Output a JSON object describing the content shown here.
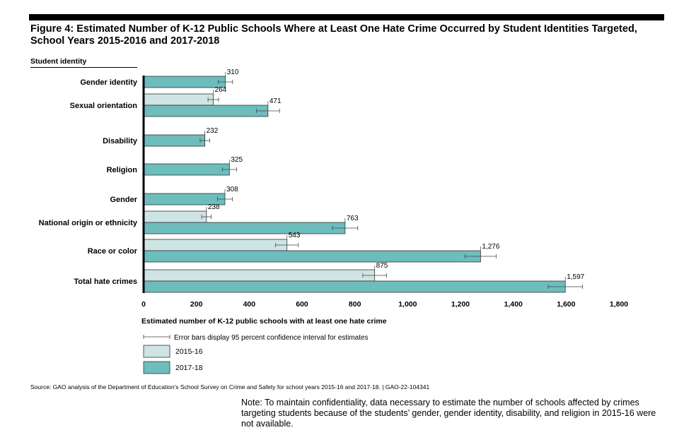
{
  "figure": {
    "title": "Figure 4: Estimated Number of K-12 Public Schools Where at Least One Hate Crime Occurred by Student Identities Targeted, School Years 2015-2016 and 2017-2018",
    "category_header": "Student identity",
    "source": "Source: GAO analysis of the Department of Education's School Survey on Crime and Safety for school years 2015-16 and 2017-18.  |  GAO-22-104341",
    "note": "Note: To maintain confidentiality, data necessary to estimate the number of schools affected by crimes targeting students because of the students’ gender, gender identity, disability, and religion in 2015-16 were not available."
  },
  "legend": {
    "error_bar_text": "Error bars display 95 percent confidence interval for estimates",
    "items": [
      {
        "label": "2015-16",
        "color": "#cfe4e4"
      },
      {
        "label": "2017-18",
        "color": "#6dbdbd"
      }
    ]
  },
  "chart_data": {
    "type": "bar",
    "orientation": "horizontal",
    "title": "Figure 4: Estimated Number of K-12 Public Schools Where at Least One Hate Crime Occurred by Student Identities Targeted, School Years 2015-2016 and 2017-2018",
    "xlabel": "Estimated number of K-12 public schools with at least one hate crime",
    "ylabel": "Student identity",
    "xlim": [
      0,
      1800
    ],
    "xticks": [
      0,
      200,
      400,
      600,
      800,
      1000,
      1200,
      1400,
      1600,
      1800
    ],
    "xtick_labels": [
      "0",
      "200",
      "400",
      "600",
      "800",
      "1,000",
      "1,200",
      "1,400",
      "1,600",
      "1,800"
    ],
    "grid": false,
    "categories": [
      "Gender identity",
      "Sexual orientation",
      "Disability",
      "Religion",
      "Gender",
      "National origin or ethnicity",
      "Race or color",
      "Total hate crimes"
    ],
    "series": [
      {
        "name": "2015-16",
        "color": "#cfe4e4",
        "values": [
          null,
          264,
          null,
          null,
          null,
          238,
          543,
          875
        ],
        "labels": [
          null,
          "264",
          null,
          null,
          null,
          "238",
          "543",
          "875"
        ],
        "ci": [
          null,
          [
            244,
            284
          ],
          null,
          null,
          null,
          [
            220,
            256
          ],
          [
            500,
            586
          ],
          [
            830,
            920
          ]
        ]
      },
      {
        "name": "2017-18",
        "color": "#6dbdbd",
        "values": [
          310,
          471,
          232,
          325,
          308,
          763,
          1276,
          1597
        ],
        "labels": [
          "310",
          "471",
          "232",
          "325",
          "308",
          "763",
          "1,276",
          "1,597"
        ],
        "ci": [
          [
            283,
            337
          ],
          [
            427,
            515
          ],
          [
            214,
            250
          ],
          [
            298,
            352
          ],
          [
            280,
            336
          ],
          [
            715,
            811
          ],
          [
            1217,
            1335
          ],
          [
            1532,
            1662
          ]
        ]
      }
    ]
  }
}
